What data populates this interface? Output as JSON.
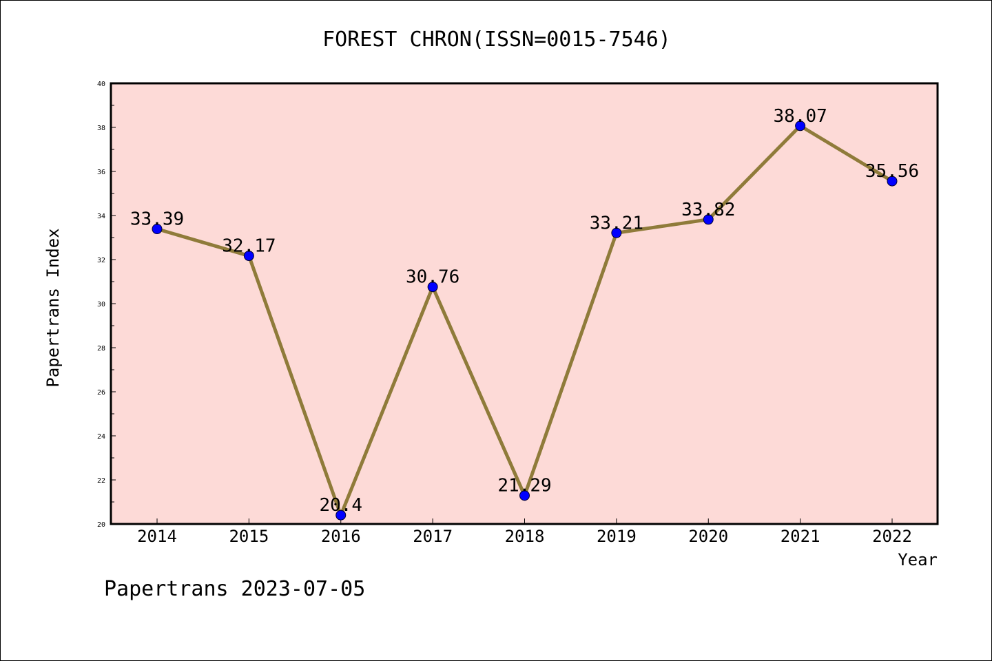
{
  "chart_data": {
    "type": "line",
    "title": "FOREST CHRON(ISSN=0015-7546)",
    "xlabel": "Year",
    "ylabel": "Papertrans Index",
    "x": [
      "2014",
      "2015",
      "2016",
      "2017",
      "2018",
      "2019",
      "2020",
      "2021",
      "2022"
    ],
    "series": [
      {
        "values": [
          33.39,
          32.17,
          20.4,
          30.76,
          21.29,
          33.21,
          33.82,
          38.07,
          35.56
        ],
        "labels": [
          "33.39",
          "32.17",
          "20.4",
          "30.76",
          "21.29",
          "33.21",
          "33.82",
          "38.07",
          "35.56"
        ]
      }
    ],
    "ylim": [
      20,
      40
    ],
    "yticks": [
      20,
      22,
      24,
      26,
      28,
      30,
      32,
      34,
      36,
      38,
      40
    ],
    "grid": false,
    "legend": "none",
    "colors": {
      "plot_background": "#fddad7",
      "line": "#8f7b3a",
      "marker": "#0000ff",
      "axis": "#000000"
    }
  },
  "footer": "Papertrans 2023-07-05"
}
